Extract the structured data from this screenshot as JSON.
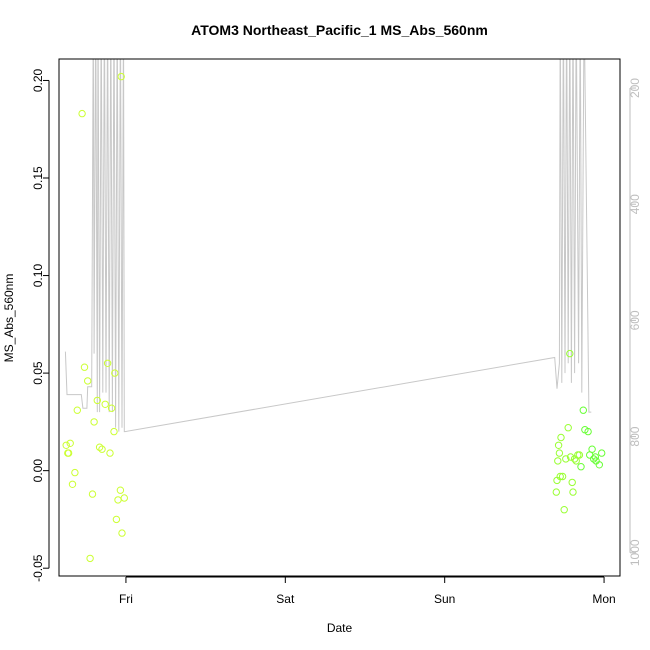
{
  "chart_data": {
    "type": "scatter",
    "title": "ATOM3 Northeast_Pacific_1 MS_Abs_560nm",
    "xlabel": "Date",
    "ylabel": "MS_Abs_560nm",
    "x_ticks": [
      "Fri",
      "Sat",
      "Sun",
      "Mon"
    ],
    "x_range_days": [
      -0.42,
      3.1
    ],
    "ylim": [
      -0.054,
      0.211
    ],
    "y_ticks": [
      "-0.05",
      "0.00",
      "0.05",
      "0.10",
      "0.15",
      "0.20"
    ],
    "y_tick_values": [
      -0.05,
      0.0,
      0.05,
      0.1,
      0.15,
      0.2
    ],
    "right_axis": {
      "ticks": [
        "200",
        "400",
        "600",
        "800",
        "1000"
      ],
      "tick_values": [
        200,
        400,
        600,
        800,
        1000
      ],
      "range_top_to_bottom": [
        150,
        1040
      ],
      "color": "#bebebe"
    },
    "point_colors": [
      "#ccff33",
      "#99ff33",
      "#66ff33"
    ],
    "line_color": "#c8c8c8",
    "series": [
      {
        "kind": "points",
        "x": [
          -0.375,
          -0.365,
          -0.36,
          -0.35,
          -0.335,
          -0.32,
          -0.305,
          -0.275,
          -0.26,
          -0.24,
          -0.225,
          -0.21,
          -0.2,
          -0.18,
          -0.165,
          -0.15,
          -0.13,
          -0.115,
          -0.1,
          -0.09,
          -0.075,
          -0.05,
          -0.035,
          -0.01
        ],
        "y": [
          0.013,
          0.009,
          0.009,
          0.014,
          -0.007,
          -0.001,
          0.031,
          0.183,
          0.053,
          0.046,
          -0.045,
          -0.012,
          0.025,
          0.036,
          0.012,
          0.011,
          0.034,
          0.055,
          0.009,
          0.032,
          0.02,
          -0.015,
          -0.01,
          -0.014
        ]
      },
      {
        "kind": "points",
        "x": [
          -0.07,
          -0.06,
          -0.03,
          -0.025
        ],
        "y": [
          0.05,
          -0.025,
          0.202,
          -0.032
        ]
      },
      {
        "kind": "points",
        "x": [
          2.7,
          2.705,
          2.71,
          2.715,
          2.72,
          2.725,
          2.73,
          2.74,
          2.75,
          2.76,
          2.775,
          2.785,
          2.79,
          2.8,
          2.805,
          2.815,
          2.825,
          2.835,
          2.845,
          2.855,
          2.87,
          2.88,
          2.9,
          2.91,
          2.925,
          2.935,
          2.945,
          2.95,
          2.97,
          2.985
        ],
        "y": [
          -0.011,
          -0.005,
          0.005,
          0.013,
          0.009,
          -0.003,
          0.017,
          -0.003,
          -0.02,
          0.006,
          0.022,
          0.06,
          0.007,
          -0.006,
          -0.011,
          0.006,
          0.005,
          0.008,
          0.008,
          0.002,
          0.031,
          0.021,
          0.02,
          0.008,
          0.011,
          0.006,
          0.007,
          0.005,
          0.003,
          0.009
        ]
      }
    ]
  }
}
